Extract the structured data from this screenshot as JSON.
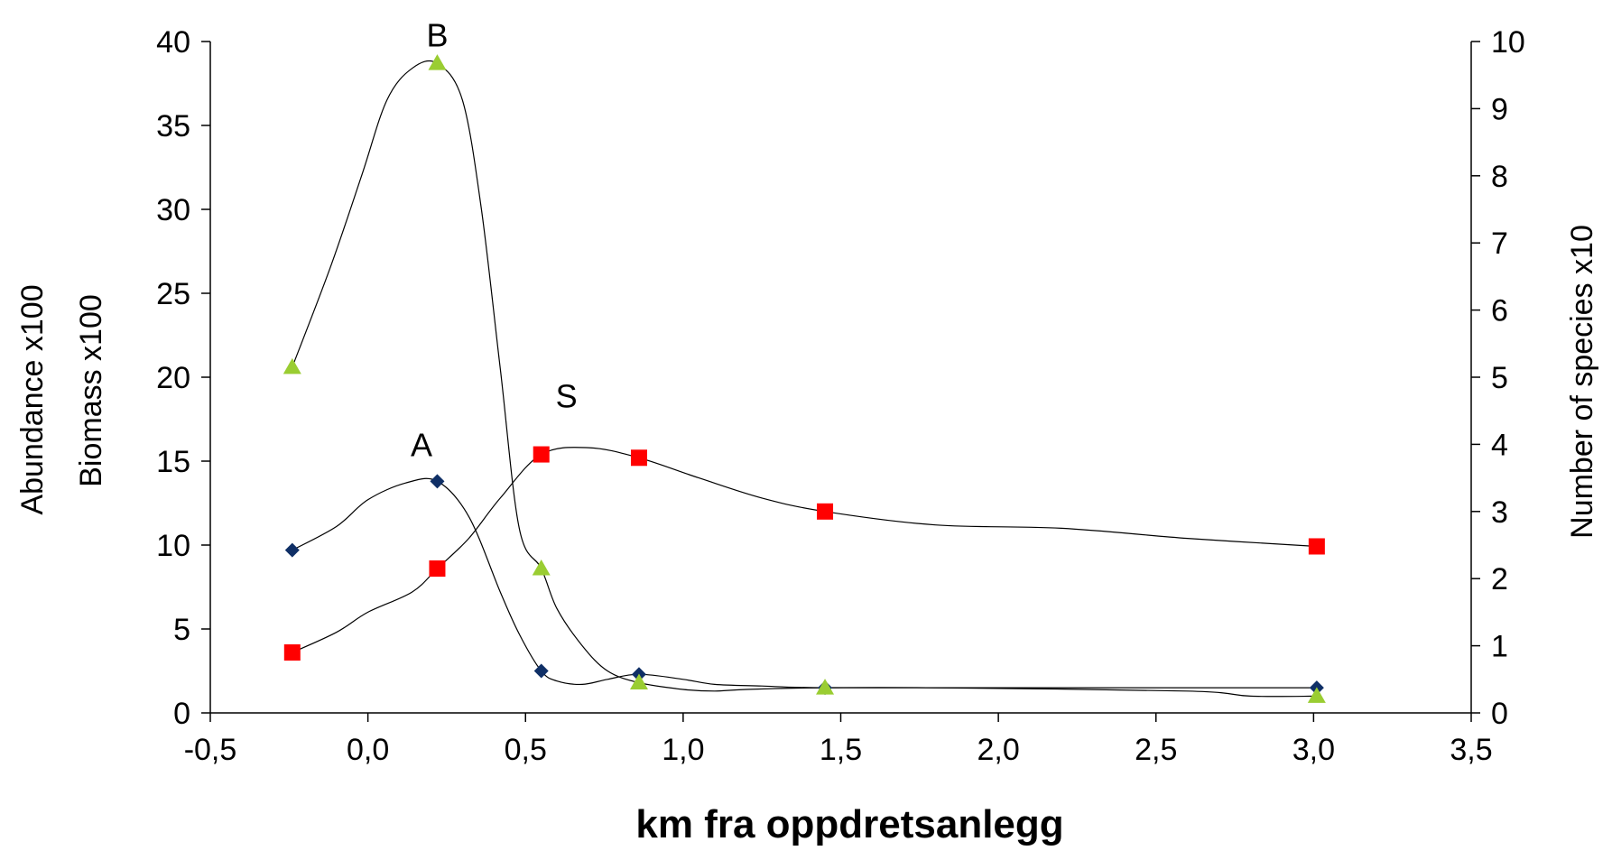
{
  "chart_data": {
    "type": "line",
    "xlabel": "km fra oppdretsanlegg",
    "ylabel_left": [
      "Abundance x100",
      "Biomass x100"
    ],
    "ylabel_right": "Number of species x10",
    "xlim": [
      -0.5,
      3.5
    ],
    "ylim_left": [
      0,
      40
    ],
    "ylim_right": [
      0,
      10
    ],
    "x_ticks": [
      "-0,5",
      "0,0",
      "0,5",
      "1,0",
      "1,5",
      "2,0",
      "2,5",
      "3,0",
      "3,5"
    ],
    "y_ticks_left": [
      "0",
      "5",
      "10",
      "15",
      "20",
      "25",
      "30",
      "35",
      "40"
    ],
    "y_ticks_right": [
      "0",
      "1",
      "2",
      "3",
      "4",
      "5",
      "6",
      "7",
      "8",
      "9",
      "10"
    ],
    "grid": false,
    "legend": "none",
    "series": [
      {
        "name": "A",
        "axis": "left",
        "marker": "diamond",
        "color": "#0f2f66",
        "x": [
          -0.24,
          0.22,
          0.55,
          0.86,
          1.45,
          3.01
        ],
        "values": [
          9.7,
          13.8,
          2.5,
          2.3,
          1.5,
          1.5
        ],
        "curve": [
          [
            -0.24,
            9.7
          ],
          [
            -0.1,
            11.1
          ],
          [
            0.0,
            12.7
          ],
          [
            0.12,
            13.7
          ],
          [
            0.22,
            13.8
          ],
          [
            0.32,
            11.7
          ],
          [
            0.42,
            7.2
          ],
          [
            0.48,
            4.7
          ],
          [
            0.55,
            2.5
          ],
          [
            0.6,
            1.9
          ],
          [
            0.68,
            1.7
          ],
          [
            0.76,
            2.0
          ],
          [
            0.86,
            2.3
          ],
          [
            1.0,
            2.0
          ],
          [
            1.1,
            1.7
          ],
          [
            1.25,
            1.6
          ],
          [
            1.45,
            1.5
          ],
          [
            2.0,
            1.5
          ],
          [
            2.6,
            1.5
          ],
          [
            3.01,
            1.5
          ]
        ]
      },
      {
        "name": "B",
        "axis": "left",
        "marker": "triangle",
        "color": "#9acd32",
        "x": [
          -0.24,
          0.22,
          0.55,
          0.86,
          1.45,
          3.01
        ],
        "values": [
          20.6,
          38.7,
          8.6,
          1.8,
          1.5,
          1.0
        ],
        "curve": [
          [
            -0.24,
            20.6
          ],
          [
            -0.12,
            26.5
          ],
          [
            -0.02,
            32.0
          ],
          [
            0.06,
            36.5
          ],
          [
            0.14,
            38.4
          ],
          [
            0.22,
            38.7
          ],
          [
            0.3,
            36.5
          ],
          [
            0.36,
            30.0
          ],
          [
            0.42,
            20.5
          ],
          [
            0.48,
            11.0
          ],
          [
            0.55,
            8.6
          ],
          [
            0.6,
            6.2
          ],
          [
            0.68,
            4.0
          ],
          [
            0.76,
            2.5
          ],
          [
            0.86,
            1.8
          ],
          [
            1.0,
            1.4
          ],
          [
            1.1,
            1.3
          ],
          [
            1.2,
            1.4
          ],
          [
            1.45,
            1.5
          ],
          [
            1.8,
            1.5
          ],
          [
            2.6,
            1.3
          ],
          [
            2.8,
            1.0
          ],
          [
            3.01,
            1.0
          ]
        ]
      },
      {
        "name": "S",
        "axis": "right",
        "marker": "square",
        "color": "#ff0000",
        "x": [
          -0.24,
          0.22,
          0.55,
          0.86,
          1.45,
          3.01
        ],
        "values": [
          0.9,
          2.15,
          3.85,
          3.8,
          3.0,
          2.48
        ],
        "curve": [
          [
            -0.24,
            0.9
          ],
          [
            -0.1,
            1.2
          ],
          [
            0.0,
            1.5
          ],
          [
            0.14,
            1.8
          ],
          [
            0.22,
            2.15
          ],
          [
            0.32,
            2.6
          ],
          [
            0.42,
            3.2
          ],
          [
            0.55,
            3.85
          ],
          [
            0.7,
            3.95
          ],
          [
            0.86,
            3.8
          ],
          [
            1.05,
            3.5
          ],
          [
            1.25,
            3.2
          ],
          [
            1.45,
            3.0
          ],
          [
            1.8,
            2.8
          ],
          [
            2.2,
            2.75
          ],
          [
            2.6,
            2.6
          ],
          [
            3.01,
            2.48
          ]
        ]
      }
    ],
    "annotations": [
      {
        "text": "B",
        "x": 0.22,
        "y": 39.7
      },
      {
        "text": "A",
        "x": 0.17,
        "y": 15.3
      },
      {
        "text": "S",
        "x": 0.63,
        "y": 18.2
      }
    ]
  }
}
